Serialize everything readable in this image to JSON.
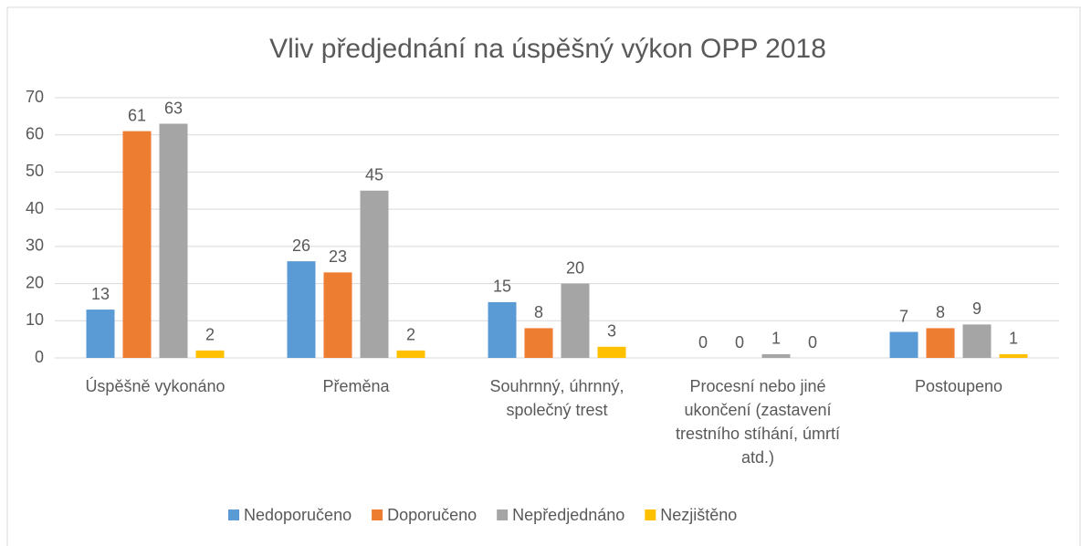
{
  "chart_data": {
    "type": "bar",
    "title": "Vliv předjednání na úspěšný výkon OPP 2018",
    "categories": [
      "Úspěšně vykonáno",
      "Přeměna",
      "Souhrnný, úhrnný, společný trest",
      "Procesní nebo jiné ukončení (zastavení trestního stíhání, úmrtí atd.)",
      "Postoupeno"
    ],
    "series": [
      {
        "name": "Nedoporučeno",
        "color": "#5b9bd5",
        "values": [
          13,
          26,
          15,
          0,
          7
        ]
      },
      {
        "name": "Doporučeno",
        "color": "#ed7d31",
        "values": [
          61,
          23,
          8,
          0,
          8
        ]
      },
      {
        "name": "Nepředjednáno",
        "color": "#a5a5a5",
        "values": [
          63,
          45,
          20,
          1,
          9
        ]
      },
      {
        "name": "Nezjištěno",
        "color": "#ffc000",
        "values": [
          2,
          2,
          3,
          0,
          1
        ]
      }
    ],
    "ylim": [
      0,
      70
    ],
    "yticks": [
      0,
      10,
      20,
      30,
      40,
      50,
      60,
      70
    ],
    "grid": true,
    "legend": "bottom"
  }
}
